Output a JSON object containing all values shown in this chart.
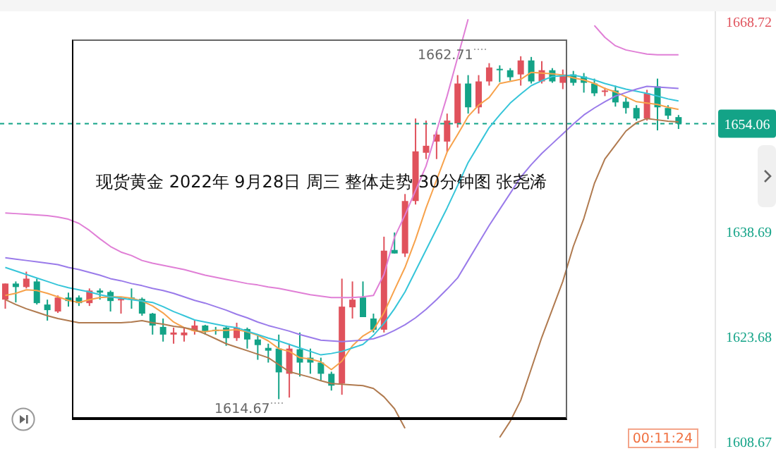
{
  "chart_data": {
    "type": "candlestick",
    "title": "现货黄金 2022年 9月28日 周三 整体走势 30分钟图 张尧浠",
    "categories": [
      null,
      null,
      null,
      null,
      null,
      null,
      null,
      null,
      null,
      null,
      null,
      null,
      null,
      null,
      null,
      null,
      null,
      null,
      null,
      null,
      null,
      null,
      null,
      null,
      null,
      null,
      null,
      null,
      null,
      null,
      null,
      null,
      null,
      null,
      null,
      null,
      null,
      null,
      null,
      null,
      null,
      null,
      null,
      null,
      null,
      null,
      null,
      null,
      null,
      null,
      null,
      null,
      null,
      null,
      null,
      null,
      null,
      null,
      null,
      null,
      null,
      null,
      null,
      null,
      null,
      null,
      null,
      null
    ],
    "ohlc": [
      [
        1628.9,
        1631.2,
        1627.6,
        1631.2
      ],
      [
        1631.2,
        1631.5,
        1628.5,
        1630.7
      ],
      [
        1630.7,
        1632.9,
        1630.5,
        1631.9
      ],
      [
        1631.5,
        1631.9,
        1628.2,
        1628.4
      ],
      [
        1628.2,
        1628.9,
        1625.9,
        1627.4
      ],
      [
        1627.2,
        1629.5,
        1627.0,
        1629.2
      ],
      [
        1629.2,
        1629.9,
        1627.9,
        1628.7
      ],
      [
        1629.2,
        1629.5,
        1628.0,
        1628.4
      ],
      [
        1628.4,
        1630.5,
        1628.0,
        1630.2
      ],
      [
        1630.2,
        1630.5,
        1628.9,
        1629.9
      ],
      [
        1630.0,
        1630.2,
        1627.2,
        1628.7
      ],
      [
        1628.8,
        1629.2,
        1626.9,
        1629.0
      ],
      [
        1629.2,
        1630.5,
        1627.6,
        1629.1
      ],
      [
        1629.0,
        1629.2,
        1626.6,
        1626.9
      ],
      [
        1626.9,
        1627.0,
        1623.9,
        1625.2
      ],
      [
        1625.0,
        1626.2,
        1622.9,
        1623.9
      ],
      [
        1623.9,
        1624.9,
        1622.6,
        1624.2
      ],
      [
        1623.8,
        1624.9,
        1622.9,
        1624.2
      ],
      [
        1624.4,
        1625.9,
        1623.9,
        1625.2
      ],
      [
        1625.2,
        1625.3,
        1623.9,
        1624.4
      ],
      [
        1624.6,
        1625.0,
        1623.9,
        1624.5
      ],
      [
        1624.9,
        1625.2,
        1622.3,
        1623.4
      ],
      [
        1623.4,
        1625.6,
        1623.0,
        1624.9
      ],
      [
        1624.7,
        1624.9,
        1621.9,
        1623.2
      ],
      [
        1623.2,
        1623.9,
        1620.3,
        1622.4
      ],
      [
        1622.0,
        1622.6,
        1619.9,
        1621.6
      ],
      [
        1621.9,
        1623.9,
        1614.67,
        1618.5
      ],
      [
        1618.3,
        1622.6,
        1614.9,
        1621.9
      ],
      [
        1621.8,
        1624.2,
        1617.9,
        1619.9
      ],
      [
        1620.6,
        1621.9,
        1618.3,
        1619.9
      ],
      [
        1619.9,
        1620.6,
        1617.3,
        1618.3
      ],
      [
        1618.3,
        1618.6,
        1615.9,
        1616.6
      ],
      [
        1616.9,
        1631.9,
        1615.3,
        1627.9
      ],
      [
        1627.8,
        1631.5,
        1626.2,
        1628.9
      ],
      [
        1629.2,
        1631.5,
        1626.4,
        1626.4
      ],
      [
        1626.2,
        1626.9,
        1624.2,
        1624.6
      ],
      [
        1624.6,
        1637.9,
        1624.2,
        1635.9
      ],
      [
        1636.0,
        1638.5,
        1635.5,
        1635.5
      ],
      [
        1635.5,
        1644.0,
        1635.0,
        1643.0
      ],
      [
        1643.0,
        1654.8,
        1642.5,
        1650.1
      ],
      [
        1649.9,
        1654.5,
        1649.0,
        1650.9
      ],
      [
        1651.5,
        1653.0,
        1649.0,
        1652.5
      ],
      [
        1651.5,
        1655.5,
        1650.0,
        1654.5
      ],
      [
        1654.1,
        1661.0,
        1653.5,
        1659.8
      ],
      [
        1659.8,
        1661.0,
        1655.5,
        1656.4
      ],
      [
        1656.4,
        1661.0,
        1655.5,
        1660.1
      ],
      [
        1660.1,
        1662.71,
        1659.5,
        1662.1
      ],
      [
        1661.9,
        1662.4,
        1660.0,
        1661.8
      ],
      [
        1661.7,
        1662.0,
        1660.2,
        1660.7
      ],
      [
        1661.1,
        1663.7,
        1659.5,
        1663.1
      ],
      [
        1663.1,
        1663.6,
        1659.8,
        1660.1
      ],
      [
        1660.1,
        1663.0,
        1659.8,
        1661.7
      ],
      [
        1661.7,
        1662.0,
        1659.9,
        1660.1
      ],
      [
        1659.9,
        1661.8,
        1659.0,
        1661.1
      ],
      [
        1661.1,
        1661.6,
        1659.5,
        1659.9
      ],
      [
        1660.8,
        1661.3,
        1658.5,
        1659.9
      ],
      [
        1659.8,
        1660.5,
        1658.0,
        1658.4
      ],
      [
        1658.6,
        1659.2,
        1658.0,
        1658.8
      ],
      [
        1658.8,
        1659.5,
        1656.5,
        1657.1
      ],
      [
        1657.2,
        1657.8,
        1655.5,
        1656.3
      ],
      [
        1656.3,
        1656.7,
        1654.5,
        1654.8
      ],
      [
        1654.8,
        1658.9,
        1654.5,
        1658.4
      ],
      [
        1659.4,
        1660.5,
        1653.1,
        1656.4
      ],
      [
        1656.3,
        1656.7,
        1654.7,
        1655.2
      ],
      [
        1655.0,
        1655.3,
        1653.3,
        1654.06
      ],
      null,
      null,
      null
    ],
    "colors": [
      "#e0525c",
      "#13a387",
      "#e0525c",
      "#13a387",
      "#13a387",
      "#e0525c",
      "#13a387",
      "#13a387",
      "#e0525c",
      "#13a387",
      "#13a387",
      "#e0525c",
      "#13a387",
      "#13a387",
      "#13a387",
      "#13a387",
      "#e0525c",
      "#e0525c",
      "#e0525c",
      "#13a387",
      "#13a387",
      "#13a387",
      "#e0525c",
      "#13a387",
      "#13a387",
      "#13a387",
      "#13a387",
      "#e0525c",
      "#13a387",
      "#13a387",
      "#13a387",
      "#13a387",
      "#e0525c",
      "#e0525c",
      "#13a387",
      "#13a387",
      "#e0525c",
      "#13a387",
      "#e0525c",
      "#e0525c",
      "#e0525c",
      "#e0525c",
      "#e0525c",
      "#e0525c",
      "#13a387",
      "#e0525c",
      "#e0525c",
      "#13a387",
      "#13a387",
      "#e0525c",
      "#13a387",
      "#e0525c",
      "#13a387",
      "#e0525c",
      "#13a387",
      "#13a387",
      "#13a387",
      "#e0525c",
      "#13a387",
      "#13a387",
      "#13a387",
      "#e0525c",
      "#13a387",
      "#13a387",
      "#13a387",
      null,
      null,
      null
    ],
    "series": [
      {
        "type": "line",
        "color": "#f7a24b",
        "values": [
          1629.5,
          1629.8,
          1630.3,
          1630.2,
          1629.8,
          1629.3,
          1628.8,
          1628.5,
          1628.9,
          1629.2,
          1629.3,
          1629.3,
          1629.1,
          1628.7,
          1628.0,
          1627.0,
          1625.7,
          1624.9,
          1624.4,
          1624.3,
          1624.5,
          1624.5,
          1624.6,
          1624.3,
          1623.8,
          1623.0,
          1621.9,
          1621.5,
          1620.6,
          1620.4,
          1620.0,
          1618.9,
          1620.1,
          1622.3,
          1623.7,
          1624.6,
          1627.0,
          1630.3,
          1633.5,
          1637.5,
          1642.0,
          1646.0,
          1650.0,
          1652.5,
          1655.1,
          1656.7,
          1657.8,
          1659.8,
          1660.1,
          1660.4,
          1661.4,
          1661.3,
          1661.2,
          1661.0,
          1660.6,
          1660.3,
          1659.8,
          1659.1,
          1658.6,
          1657.9,
          1657.2,
          1657.0,
          1656.8,
          1656.4,
          1656.1,
          null,
          null,
          null
        ]
      },
      {
        "type": "line",
        "color": "#36c5d9",
        "values": [
          1633.5,
          1633.0,
          1632.5,
          1632.0,
          1631.5,
          1631.0,
          1630.6,
          1630.3,
          1630.0,
          1629.6,
          1629.3,
          1629.1,
          1628.9,
          1628.7,
          1628.5,
          1627.9,
          1627.2,
          1626.6,
          1626.0,
          1625.7,
          1625.4,
          1625.1,
          1624.9,
          1624.4,
          1623.9,
          1623.4,
          1623.0,
          1622.5,
          1622.0,
          1621.5,
          1621.0,
          1621.2,
          1621.5,
          1622.0,
          1622.5,
          1623.8,
          1625.5,
          1627.6,
          1630.0,
          1633.0,
          1636.0,
          1639.0,
          1642.0,
          1645.2,
          1648.5,
          1651.0,
          1653.5,
          1655.3,
          1657.0,
          1658.3,
          1659.5,
          1660.2,
          1660.8,
          1660.9,
          1661.0,
          1660.7,
          1660.3,
          1659.8,
          1659.4,
          1659.0,
          1658.7,
          1658.4,
          1658.0,
          1657.6,
          1657.3,
          null,
          null,
          null
        ]
      },
      {
        "type": "line",
        "color": "#9a7bea",
        "values": [
          1634.9,
          1634.7,
          1634.5,
          1634.3,
          1634.1,
          1633.9,
          1633.5,
          1633.2,
          1632.8,
          1632.4,
          1631.9,
          1631.6,
          1631.2,
          1630.9,
          1630.5,
          1630.2,
          1629.8,
          1629.3,
          1628.8,
          1628.4,
          1627.9,
          1627.4,
          1626.8,
          1626.3,
          1625.7,
          1625.2,
          1624.8,
          1624.4,
          1623.9,
          1623.5,
          1623.1,
          1623.0,
          1622.9,
          1623.0,
          1623.1,
          1623.3,
          1623.8,
          1624.5,
          1625.3,
          1626.3,
          1627.5,
          1628.9,
          1630.4,
          1632.0,
          1634.5,
          1637.0,
          1639.5,
          1641.8,
          1644.1,
          1646.4,
          1648.2,
          1649.8,
          1651.2,
          1652.6,
          1654.0,
          1655.3,
          1656.3,
          1657.2,
          1658.0,
          1658.5,
          1659.0,
          1659.4,
          1659.3,
          1659.2,
          1659.1,
          null,
          null,
          null
        ]
      },
      {
        "type": "line",
        "color": "#e07fd6",
        "values": [
          1641.3,
          1641.2,
          1641.1,
          1641.0,
          1640.9,
          1640.7,
          1640.4,
          1639.8,
          1638.8,
          1637.6,
          1636.5,
          1635.7,
          1635.2,
          1634.5,
          1634.1,
          1633.8,
          1633.5,
          1633.2,
          1632.8,
          1632.4,
          1632.1,
          1631.8,
          1631.5,
          1631.2,
          1631.0,
          1630.7,
          1630.5,
          1630.2,
          1629.9,
          1629.6,
          1629.4,
          1629.2,
          1629.2,
          1629.2,
          1629.3,
          1629.5,
          1632.5,
          1637.8,
          1641.0,
          1644.5,
          1648.0,
          1653.0,
          1658.0,
          1663.5,
          1669.0,
          null,
          null,
          null,
          null,
          null,
          null,
          null,
          null,
          null,
          null,
          null,
          1668.1,
          1666.4,
          1665.2,
          1664.6,
          1664.3,
          1664.0,
          1663.9,
          1663.9,
          1663.9,
          null,
          null,
          null
        ]
      },
      {
        "type": "line",
        "color": "#b07a4f",
        "values": [
          1628.9,
          1628.2,
          1627.6,
          1627.1,
          1626.6,
          1626.2,
          1625.9,
          1625.6,
          1625.6,
          1625.6,
          1625.6,
          1625.6,
          1625.7,
          1625.9,
          1625.6,
          1625.4,
          1625.1,
          1624.9,
          1624.6,
          1624.0,
          1623.3,
          1622.6,
          1622.1,
          1621.6,
          1621.1,
          1620.6,
          1619.6,
          1618.6,
          1618.2,
          1617.8,
          1617.3,
          1616.9,
          1616.8,
          1616.7,
          1616.6,
          1616.2,
          1615.0,
          1613.3,
          1610.5,
          null,
          null,
          null,
          null,
          null,
          null,
          null,
          null,
          1609.2,
          1611.5,
          1614.5,
          1619.0,
          1623.5,
          1627.5,
          1631.5,
          1636.5,
          1640.5,
          1645.5,
          1649.0,
          1651.0,
          1653.0,
          1654.2,
          1654.8,
          1654.6,
          1654.4,
          1654.3,
          null,
          null,
          null
        ]
      }
    ],
    "ylim": [
      1607.66,
      1670.13
    ],
    "yticks": [
      1608.67,
      1623.68,
      1638.69,
      1668.72
    ],
    "ref_lines": [
      {
        "axis": "y",
        "value": 1654.06,
        "label": "1654.06",
        "color": "#13a387",
        "line_style": "dashed"
      }
    ],
    "annotations": [
      "1662.71",
      "1614.67",
      "00:11:24"
    ]
  }
}
